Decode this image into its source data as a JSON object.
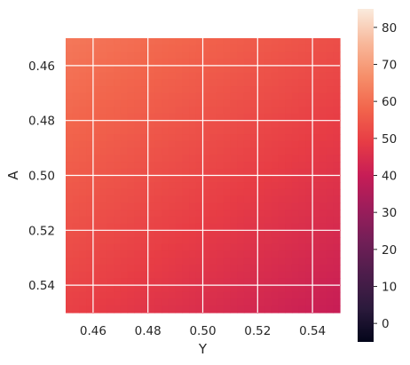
{
  "chart_data": {
    "type": "heatmap",
    "title": "",
    "xlabel": "Y",
    "ylabel": "A",
    "xlim": [
      0.45,
      0.55
    ],
    "ylim": [
      0.45,
      0.55
    ],
    "y_inverted": true,
    "x_ticks": [
      "0.46",
      "0.48",
      "0.50",
      "0.52",
      "0.54"
    ],
    "y_ticks": [
      "0.46",
      "0.48",
      "0.50",
      "0.52",
      "0.54"
    ],
    "x_tick_values": [
      0.46,
      0.48,
      0.5,
      0.52,
      0.54
    ],
    "y_tick_values": [
      0.46,
      0.48,
      0.5,
      0.52,
      0.54
    ],
    "surface": {
      "corner_values": {
        "x0_y0": 62,
        "x1_y0": 53,
        "x0_y1": 50,
        "x1_y1": 40
      }
    },
    "grid": true,
    "grid_color": "#ffffff",
    "colorbar": {
      "min": -5,
      "max": 85,
      "ticks": [
        "0",
        "10",
        "20",
        "30",
        "40",
        "50",
        "60",
        "70",
        "80"
      ],
      "tick_values": [
        0,
        10,
        20,
        30,
        40,
        50,
        60,
        70,
        80
      ],
      "colormap": "rocket",
      "colors": [
        "#03051a",
        "#2b1a3c",
        "#4c1d4b",
        "#711f57",
        "#9c1d5b",
        "#c71d56",
        "#e73c45",
        "#f2654c",
        "#f6906b",
        "#f8b99c",
        "#faebdd"
      ]
    },
    "legend": "colorbar-right"
  }
}
